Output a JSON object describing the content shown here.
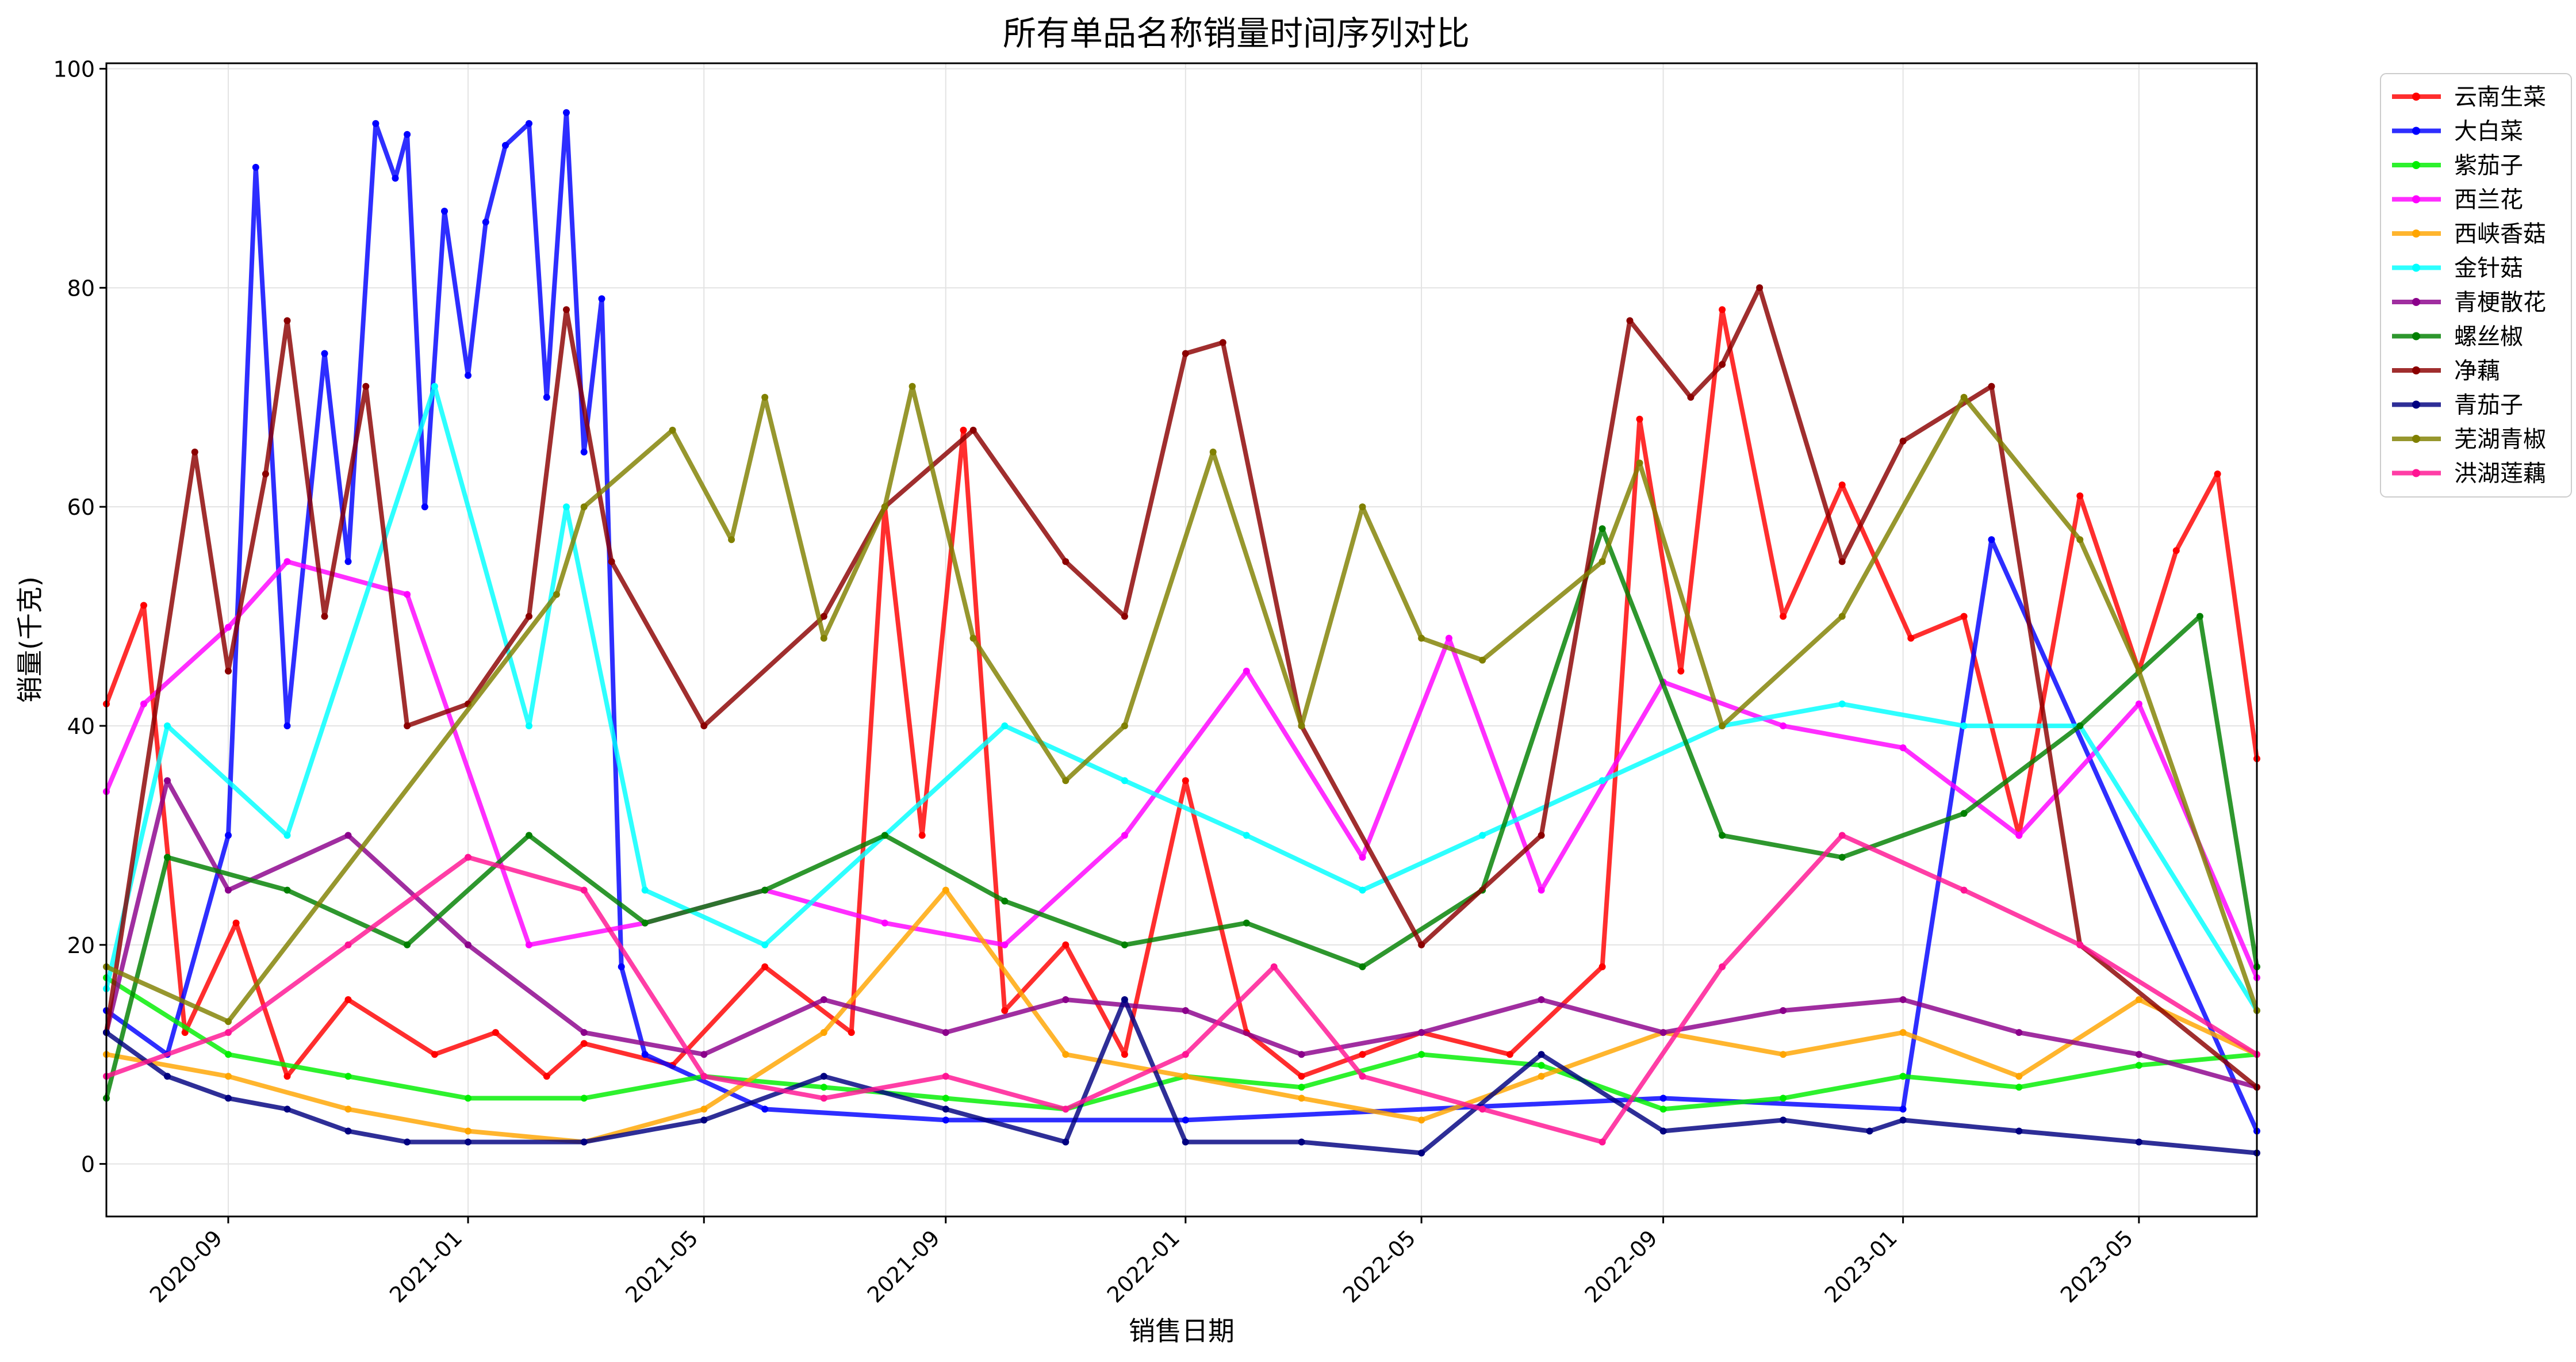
{
  "chart_data": {
    "type": "line",
    "title": "所有单品名称销量时间序列对比",
    "xlabel": "销售日期",
    "ylabel": "销量(千克)",
    "x_range": [
      "2020-07-01",
      "2023-06-30"
    ],
    "ylim": [
      -4.8,
      100.5
    ],
    "x_ticks": [
      "2020-09",
      "2021-01",
      "2021-05",
      "2021-09",
      "2022-01",
      "2022-05",
      "2022-09",
      "2023-01",
      "2023-05"
    ],
    "y_ticks": [
      0,
      20,
      40,
      60,
      80,
      100
    ],
    "grid": true,
    "legend_position": "outside-top-right",
    "series": [
      {
        "name": "云南生菜",
        "color": "#ff0000",
        "x": [
          "2020-07-01",
          "2020-07-20",
          "2020-08-10",
          "2020-09-05",
          "2020-10-01",
          "2020-11-01",
          "2020-12-15",
          "2021-01-15",
          "2021-02-10",
          "2021-03-01",
          "2021-04-15",
          "2021-06-01",
          "2021-07-15",
          "2021-08-01",
          "2021-08-20",
          "2021-09-10",
          "2021-10-01",
          "2021-11-01",
          "2021-12-01",
          "2022-01-01",
          "2022-02-01",
          "2022-03-01",
          "2022-04-01",
          "2022-05-01",
          "2022-06-15",
          "2022-08-01",
          "2022-08-20",
          "2022-09-10",
          "2022-10-01",
          "2022-11-01",
          "2022-12-01",
          "2023-01-05",
          "2023-02-01",
          "2023-03-01",
          "2023-04-01",
          "2023-05-01",
          "2023-05-20",
          "2023-06-10",
          "2023-06-30"
        ],
        "values": [
          42,
          51,
          12,
          22,
          8,
          15,
          10,
          12,
          8,
          11,
          9,
          18,
          12,
          60,
          30,
          67,
          14,
          20,
          10,
          35,
          12,
          8,
          10,
          12,
          10,
          18,
          68,
          45,
          78,
          50,
          62,
          48,
          50,
          30,
          61,
          45,
          56,
          63,
          37
        ]
      },
      {
        "name": "大白菜",
        "color": "#0000ff",
        "x": [
          "2020-07-01",
          "2020-08-01",
          "2020-09-01",
          "2020-09-15",
          "2020-10-01",
          "2020-10-20",
          "2020-11-01",
          "2020-11-15",
          "2020-11-25",
          "2020-12-01",
          "2020-12-10",
          "2020-12-20",
          "2021-01-01",
          "2021-01-10",
          "2021-01-20",
          "2021-02-01",
          "2021-02-10",
          "2021-02-20",
          "2021-03-01",
          "2021-03-10",
          "2021-03-20",
          "2021-04-01",
          "2021-06-01",
          "2021-09-01",
          "2022-01-01",
          "2022-09-01",
          "2023-01-01",
          "2023-02-15",
          "2023-06-30"
        ],
        "values": [
          14,
          10,
          30,
          91,
          40,
          74,
          55,
          95,
          90,
          94,
          60,
          87,
          72,
          86,
          93,
          95,
          70,
          96,
          65,
          79,
          18,
          10,
          5,
          4,
          4,
          6,
          5,
          57,
          3
        ]
      },
      {
        "name": "紫茄子",
        "color": "#00ee00",
        "x": [
          "2020-07-01",
          "2020-09-01",
          "2020-11-01",
          "2021-01-01",
          "2021-03-01",
          "2021-05-01",
          "2021-07-01",
          "2021-09-01",
          "2021-11-01",
          "2022-01-01",
          "2022-03-01",
          "2022-05-01",
          "2022-07-01",
          "2022-09-01",
          "2022-11-01",
          "2023-01-01",
          "2023-03-01",
          "2023-05-01",
          "2023-06-30"
        ],
        "values": [
          17,
          10,
          8,
          6,
          6,
          8,
          7,
          6,
          5,
          8,
          7,
          10,
          9,
          5,
          6,
          8,
          7,
          9,
          10
        ]
      },
      {
        "name": "西兰花",
        "color": "#ff00ff",
        "x": [
          "2020-07-01",
          "2020-07-20",
          "2020-09-01",
          "2020-10-01",
          "2020-12-01",
          "2021-02-01",
          "2021-04-01",
          "2021-06-01",
          "2021-08-01",
          "2021-10-01",
          "2021-12-01",
          "2022-02-01",
          "2022-04-01",
          "2022-05-15",
          "2022-07-01",
          "2022-09-01",
          "2022-11-01",
          "2023-01-01",
          "2023-03-01",
          "2023-05-01",
          "2023-06-30"
        ],
        "values": [
          34,
          42,
          49,
          55,
          52,
          20,
          22,
          25,
          22,
          20,
          30,
          45,
          28,
          48,
          25,
          44,
          40,
          38,
          30,
          42,
          17
        ]
      },
      {
        "name": "西峡香菇",
        "color": "#ffa500",
        "x": [
          "2020-07-01",
          "2020-09-01",
          "2020-11-01",
          "2021-01-01",
          "2021-03-01",
          "2021-05-01",
          "2021-07-01",
          "2021-09-01",
          "2021-11-01",
          "2022-01-01",
          "2022-03-01",
          "2022-05-01",
          "2022-07-01",
          "2022-09-01",
          "2022-11-01",
          "2023-01-01",
          "2023-03-01",
          "2023-05-01",
          "2023-06-30"
        ],
        "values": [
          10,
          8,
          5,
          3,
          2,
          5,
          12,
          25,
          10,
          8,
          6,
          4,
          8,
          12,
          10,
          12,
          8,
          15,
          10
        ]
      },
      {
        "name": "金针菇",
        "color": "#00ffff",
        "x": [
          "2020-07-01",
          "2020-08-01",
          "2020-10-01",
          "2020-12-15",
          "2021-02-01",
          "2021-02-20",
          "2021-04-01",
          "2021-06-01",
          "2021-08-01",
          "2021-10-01",
          "2021-12-01",
          "2022-02-01",
          "2022-04-01",
          "2022-06-01",
          "2022-08-01",
          "2022-10-01",
          "2022-12-01",
          "2023-02-01",
          "2023-04-01",
          "2023-06-30"
        ],
        "values": [
          16,
          40,
          30,
          71,
          40,
          60,
          25,
          20,
          30,
          40,
          35,
          30,
          25,
          30,
          35,
          40,
          42,
          40,
          40,
          14
        ]
      },
      {
        "name": "青梗散花",
        "color": "#8b008b",
        "x": [
          "2020-07-01",
          "2020-08-01",
          "2020-09-01",
          "2020-11-01",
          "2021-01-01",
          "2021-03-01",
          "2021-05-01",
          "2021-07-01",
          "2021-09-01",
          "2021-11-01",
          "2022-01-01",
          "2022-03-01",
          "2022-05-01",
          "2022-07-01",
          "2022-09-01",
          "2022-11-01",
          "2023-01-01",
          "2023-03-01",
          "2023-05-01",
          "2023-06-30"
        ],
        "values": [
          12,
          35,
          25,
          30,
          20,
          12,
          10,
          15,
          12,
          15,
          14,
          10,
          12,
          15,
          12,
          14,
          15,
          12,
          10,
          7
        ]
      },
      {
        "name": "螺丝椒",
        "color": "#008000",
        "x": [
          "2020-07-01",
          "2020-08-01",
          "2020-10-01",
          "2020-12-01",
          "2021-02-01",
          "2021-04-01",
          "2021-06-01",
          "2021-08-01",
          "2021-10-01",
          "2021-12-01",
          "2022-02-01",
          "2022-04-01",
          "2022-06-01",
          "2022-08-01",
          "2022-10-01",
          "2022-12-01",
          "2023-02-01",
          "2023-04-01",
          "2023-06-01",
          "2023-06-30"
        ],
        "values": [
          6,
          28,
          25,
          20,
          30,
          22,
          25,
          30,
          24,
          20,
          22,
          18,
          25,
          58,
          30,
          28,
          32,
          40,
          50,
          18
        ]
      },
      {
        "name": "净藕",
        "color": "#8b0000",
        "x": [
          "2020-07-01",
          "2020-08-15",
          "2020-09-01",
          "2020-09-20",
          "2020-10-01",
          "2020-10-20",
          "2020-11-10",
          "2020-12-01",
          "2021-01-01",
          "2021-02-01",
          "2021-02-20",
          "2021-03-15",
          "2021-05-01",
          "2021-07-01",
          "2021-08-01",
          "2021-09-15",
          "2021-11-01",
          "2021-12-01",
          "2022-01-01",
          "2022-01-20",
          "2022-03-01",
          "2022-05-01",
          "2022-07-01",
          "2022-08-15",
          "2022-09-15",
          "2022-10-01",
          "2022-10-20",
          "2022-12-01",
          "2023-01-01",
          "2023-02-15",
          "2023-04-01",
          "2023-06-30"
        ],
        "values": [
          12,
          65,
          45,
          63,
          77,
          50,
          71,
          40,
          42,
          50,
          78,
          55,
          40,
          50,
          60,
          67,
          55,
          50,
          74,
          75,
          40,
          20,
          30,
          77,
          70,
          73,
          80,
          55,
          66,
          71,
          20,
          7
        ]
      },
      {
        "name": "青茄子",
        "color": "#000080",
        "x": [
          "2020-07-01",
          "2020-08-01",
          "2020-09-01",
          "2020-10-01",
          "2020-11-01",
          "2020-12-01",
          "2021-01-01",
          "2021-03-01",
          "2021-05-01",
          "2021-07-01",
          "2021-09-01",
          "2021-11-01",
          "2021-12-01",
          "2022-01-01",
          "2022-03-01",
          "2022-05-01",
          "2022-07-01",
          "2022-09-01",
          "2022-11-01",
          "2022-12-15",
          "2023-01-01",
          "2023-03-01",
          "2023-05-01",
          "2023-06-30"
        ],
        "values": [
          12,
          8,
          6,
          5,
          3,
          2,
          2,
          2,
          4,
          8,
          5,
          2,
          15,
          2,
          2,
          1,
          10,
          3,
          4,
          3,
          4,
          3,
          2,
          1
        ]
      },
      {
        "name": "芜湖青椒",
        "color": "#808000",
        "x": [
          "2020-07-01",
          "2020-09-01",
          "2021-02-15",
          "2021-03-01",
          "2021-04-15",
          "2021-05-15",
          "2021-06-01",
          "2021-07-01",
          "2021-08-01",
          "2021-08-15",
          "2021-09-15",
          "2021-11-01",
          "2021-12-01",
          "2022-01-15",
          "2022-03-01",
          "2022-04-01",
          "2022-05-01",
          "2022-06-01",
          "2022-08-01",
          "2022-08-20",
          "2022-10-01",
          "2022-12-01",
          "2023-02-01",
          "2023-04-01",
          "2023-05-01",
          "2023-06-30"
        ],
        "values": [
          18,
          13,
          52,
          60,
          67,
          57,
          70,
          48,
          60,
          71,
          48,
          35,
          40,
          65,
          40,
          60,
          48,
          46,
          55,
          64,
          40,
          50,
          70,
          57,
          45,
          14
        ]
      },
      {
        "name": "洪湖莲藕",
        "color": "#ff1493",
        "x": [
          "2020-07-01",
          "2020-09-01",
          "2020-11-01",
          "2021-01-01",
          "2021-03-01",
          "2021-05-01",
          "2021-07-01",
          "2021-09-01",
          "2021-11-01",
          "2022-01-01",
          "2022-02-15",
          "2022-04-01",
          "2022-06-01",
          "2022-08-01",
          "2022-10-01",
          "2022-12-01",
          "2023-02-01",
          "2023-04-01",
          "2023-06-30"
        ],
        "values": [
          8,
          12,
          20,
          28,
          25,
          8,
          6,
          8,
          5,
          10,
          18,
          8,
          5,
          2,
          18,
          30,
          25,
          20,
          10
        ]
      }
    ]
  }
}
